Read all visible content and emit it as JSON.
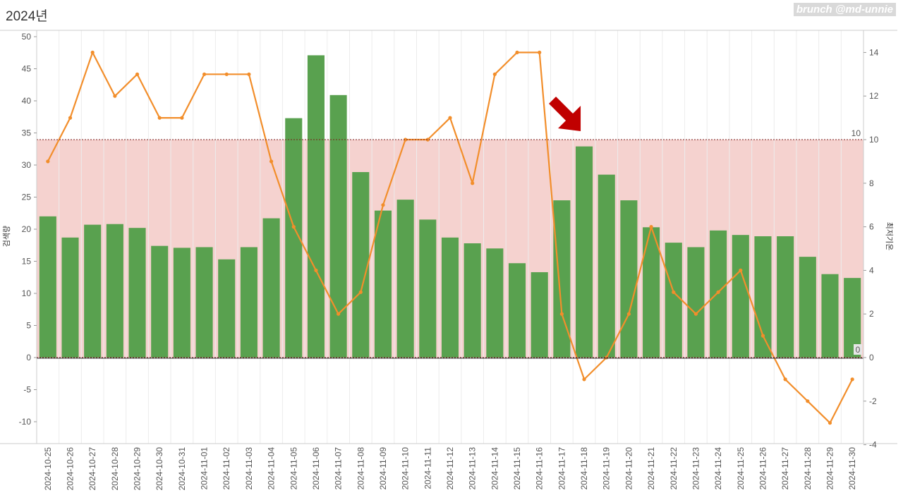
{
  "title": "2024년",
  "watermark": "brunch @md-unnie",
  "chart_data": {
    "type": "bar",
    "categories": [
      "2024-10-25",
      "2024-10-26",
      "2024-10-27",
      "2024-10-28",
      "2024-10-29",
      "2024-10-30",
      "2024-10-31",
      "2024-11-01",
      "2024-11-02",
      "2024-11-03",
      "2024-11-04",
      "2024-11-05",
      "2024-11-06",
      "2024-11-07",
      "2024-11-08",
      "2024-11-09",
      "2024-11-10",
      "2024-11-11",
      "2024-11-12",
      "2024-11-13",
      "2024-11-14",
      "2024-11-15",
      "2024-11-16",
      "2024-11-17",
      "2024-11-18",
      "2024-11-19",
      "2024-11-20",
      "2024-11-21",
      "2024-11-22",
      "2024-11-23",
      "2024-11-24",
      "2024-11-25",
      "2024-11-26",
      "2024-11-27",
      "2024-11-28",
      "2024-11-29",
      "2024-11-30"
    ],
    "series": [
      {
        "name": "검색량",
        "type": "bar",
        "axis": "left",
        "color": "#59a14f",
        "values": [
          22,
          18.7,
          20.7,
          20.8,
          20.2,
          17.4,
          17.1,
          17.2,
          15.3,
          17.2,
          21.7,
          37.3,
          47.1,
          40.9,
          28.9,
          22.9,
          24.6,
          21.5,
          18.7,
          17.8,
          17,
          14.7,
          13.3,
          24.5,
          32.9,
          28.5,
          24.5,
          20.3,
          17.9,
          17.2,
          19.8,
          19.1,
          18.9,
          18.9,
          15.7,
          13,
          12.4
        ]
      },
      {
        "name": "최저기온",
        "type": "line",
        "axis": "right",
        "color": "#f28e2b",
        "values": [
          9,
          11,
          14,
          12,
          13,
          11,
          11,
          13,
          13,
          13,
          9,
          6,
          4,
          2,
          3,
          7,
          10,
          10,
          11,
          8,
          13,
          14,
          14,
          2,
          -1,
          0,
          2,
          6,
          3,
          2,
          3,
          4,
          1,
          -1,
          -2,
          -3,
          -1
        ]
      }
    ],
    "y_left": {
      "label": "검색량",
      "ylim": [
        -13,
        50
      ],
      "ticks": [
        -10,
        -5,
        0,
        5,
        10,
        15,
        20,
        25,
        30,
        35,
        40,
        45,
        50
      ]
    },
    "y_right": {
      "label": "최저기온",
      "ylim": [
        -4.1,
        14.8
      ],
      "ticks": [
        -4,
        -2,
        0,
        2,
        4,
        6,
        8,
        10,
        12,
        14
      ]
    },
    "reference_band": {
      "axis": "right",
      "from": 0,
      "to": 10,
      "color": "#f5d2cf",
      "label_low": "0",
      "label_high": "10"
    },
    "annotation": {
      "type": "arrow",
      "color": "#c00000",
      "points_to": "2024-11-18"
    },
    "grid": "vertical"
  }
}
